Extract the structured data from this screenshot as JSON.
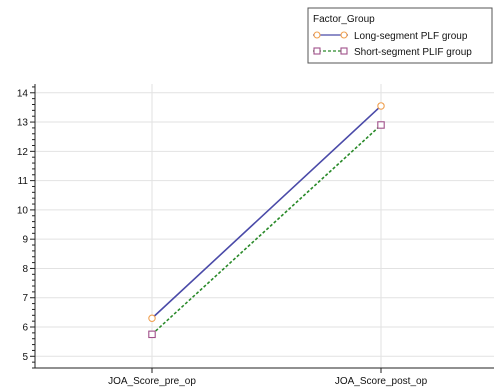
{
  "chart_data": {
    "type": "line",
    "categories": [
      "JOA_Score_pre_op",
      "JOA_Score_post_op"
    ],
    "ylim": [
      4.6,
      14.3
    ],
    "yticks": [
      5,
      6,
      7,
      8,
      9,
      10,
      11,
      12,
      13,
      14
    ],
    "grid": true,
    "legend": {
      "title": "Factor_Group",
      "placement": "top-right"
    },
    "series": [
      {
        "name": "Long-segment PLF group",
        "values": [
          6.3,
          13.55
        ],
        "line_color": "#4a4aa8",
        "line_style": "solid",
        "marker": "circle",
        "marker_color": "#f0a050"
      },
      {
        "name": "Short-segment PLIF group",
        "values": [
          5.75,
          12.9
        ],
        "line_color": "#2a8a2a",
        "line_style": "dashed",
        "marker": "square",
        "marker_color": "#a0508a"
      }
    ]
  }
}
